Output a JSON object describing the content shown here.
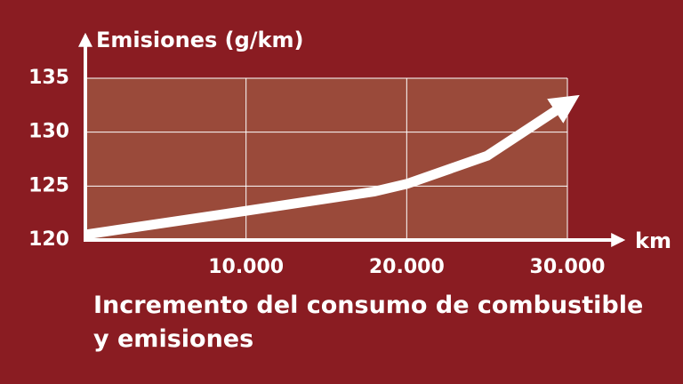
{
  "chart_data": {
    "type": "line",
    "y_label": "Emisiones (g/km)",
    "x_label": "km",
    "caption": "Incremento del consumo de combustible y emisiones",
    "x": [
      0,
      10000,
      18000,
      20000,
      25000,
      30000
    ],
    "series": [
      {
        "color": "#ffffff",
        "values": [
          120.5,
          122.7,
          124.5,
          125.2,
          127.8,
          132.7
        ]
      }
    ],
    "xlim": [
      0,
      30000
    ],
    "xticks": [
      {
        "value": 10000,
        "label": "10.000"
      },
      {
        "value": 20000,
        "label": "20.000"
      },
      {
        "value": 30000,
        "label": "30.000"
      }
    ],
    "ylim": [
      120,
      135
    ],
    "yticks": [
      120,
      125,
      130,
      135
    ],
    "grid": true
  }
}
